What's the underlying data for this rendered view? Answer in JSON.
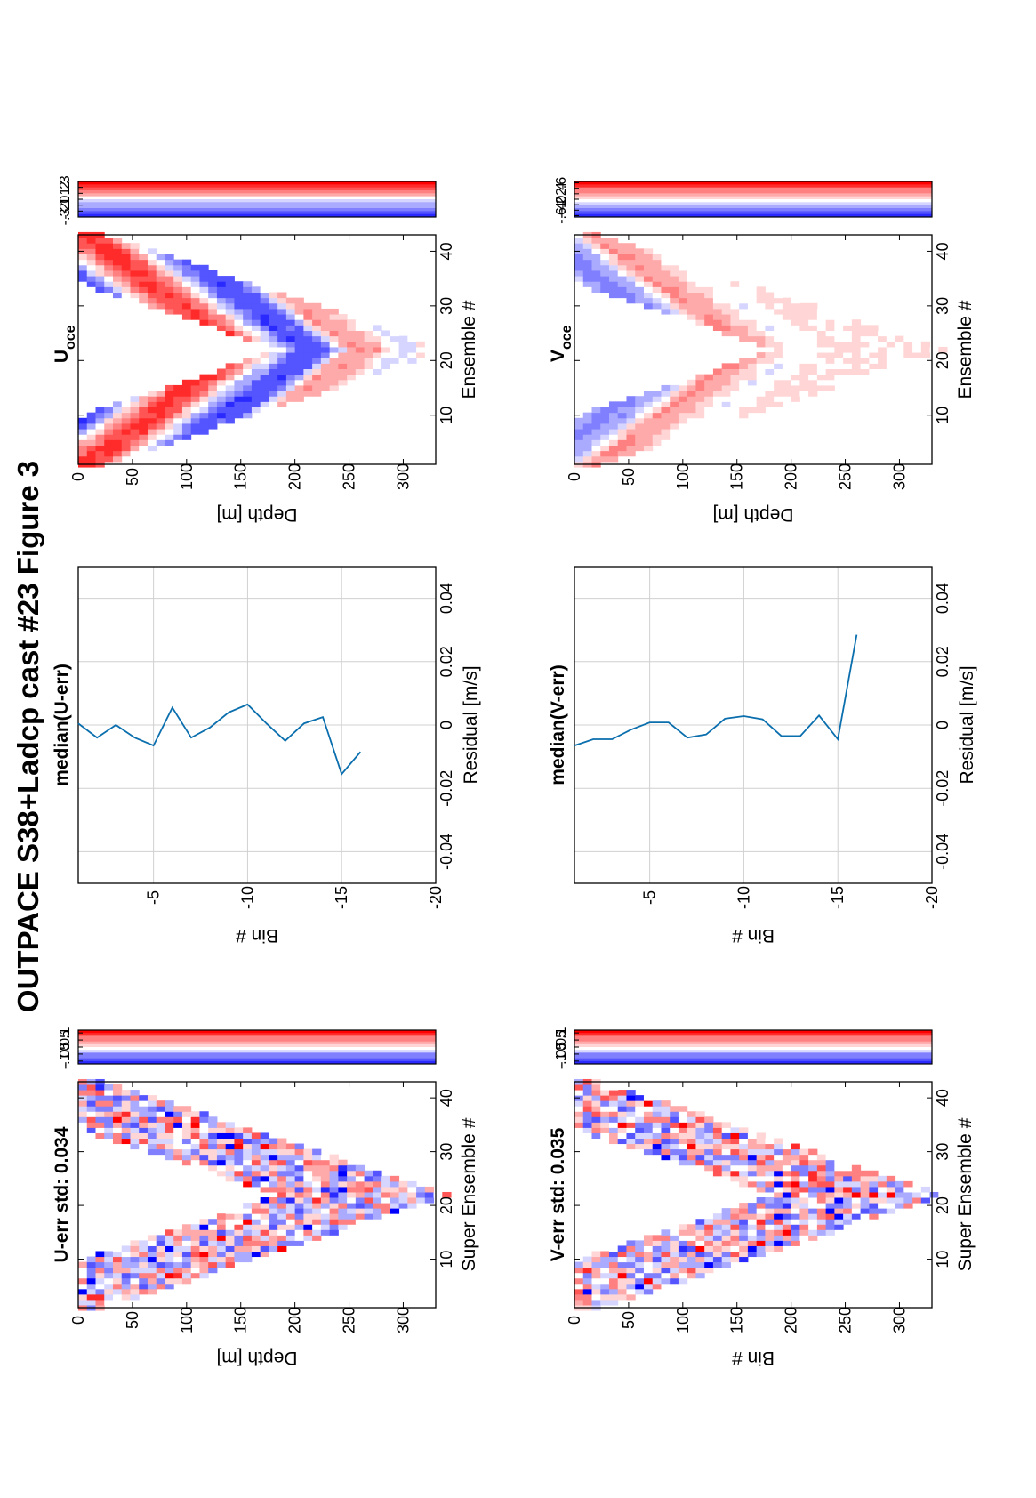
{
  "page_title": "OUTPACE S38+Ladcp cast #23  Figure 3",
  "colors": {
    "positive": "#ff0000",
    "negative": "#0000ff",
    "line": "#0b6fae",
    "grid": "#d0d0d0"
  },
  "chart_data": [
    {
      "type": "heatmap",
      "title": "U-err std: 0.034",
      "xlabel": "Super Ensemble #",
      "ylabel": "Depth [m]",
      "xlim": [
        1,
        43
      ],
      "ylim": [
        0,
        330
      ],
      "xticks": [
        10,
        20,
        30,
        40
      ],
      "yticks": [
        0,
        50,
        100,
        150,
        200,
        250,
        300
      ],
      "pattern": "noise",
      "amp": 0.11,
      "seed": 11,
      "colorbar": {
        "ticks": [
          0.1,
          0.05,
          0,
          -0.05,
          -0.1
        ],
        "range": [
          -0.12,
          0.12
        ]
      }
    },
    {
      "type": "line",
      "title": "median(U-err)",
      "xlabel": "Residual [m/s]",
      "ylabel": "Bin #",
      "xlim": [
        -0.05,
        0.05
      ],
      "ylim": [
        -20,
        -1
      ],
      "xticks": [
        -0.04,
        -0.02,
        0,
        0.02,
        0.04
      ],
      "yticks": [
        -5,
        -10,
        -15,
        -20
      ],
      "x": [
        0.0005,
        -0.004,
        0,
        -0.004,
        -0.0065,
        0.0055,
        -0.004,
        -0.0008,
        0.004,
        0.0065,
        0.0005,
        -0.005,
        0.0005,
        0.0025,
        -0.0155,
        -0.0085
      ],
      "y": [
        -1,
        -2,
        -3,
        -4,
        -5,
        -6,
        -7,
        -8,
        -9,
        -10,
        -11,
        -12,
        -13,
        -14,
        -15,
        -16
      ]
    },
    {
      "type": "heatmap",
      "title": "U",
      "title_sub": "oce",
      "xlabel": "Ensemble #",
      "ylabel": "Depth [m]",
      "xlim": [
        1,
        43
      ],
      "ylim": [
        0,
        330
      ],
      "xticks": [
        10,
        20,
        30,
        40
      ],
      "yticks": [
        0,
        50,
        100,
        150,
        200,
        250,
        300
      ],
      "pattern": "bands",
      "profile": [
        [
          10,
          0.03
        ],
        [
          35,
          -0.18
        ],
        [
          60,
          -0.25
        ],
        [
          90,
          -0.2
        ],
        [
          110,
          0.05
        ],
        [
          135,
          0.25
        ],
        [
          155,
          0.2
        ],
        [
          175,
          0.0
        ],
        [
          200,
          -0.22
        ],
        [
          225,
          -0.18
        ],
        [
          245,
          0.12
        ],
        [
          270,
          0.1
        ],
        [
          295,
          -0.05
        ],
        [
          320,
          0.02
        ]
      ],
      "amp": 0.06,
      "seed": 23,
      "colorbar": {
        "ticks": [
          0.3,
          0.2,
          0.1,
          0,
          -0.1,
          -0.2,
          -0.3
        ],
        "range": [
          -0.3,
          0.3
        ]
      }
    },
    {
      "type": "heatmap",
      "title": "V-err std: 0.035",
      "xlabel": "Super Ensemble #",
      "ylabel": "Bin #",
      "xlim": [
        1,
        43
      ],
      "ylim": [
        0,
        330
      ],
      "xticks": [
        10,
        20,
        30,
        40
      ],
      "yticks": [
        0,
        50,
        100,
        150,
        200,
        250,
        300
      ],
      "pattern": "noise",
      "amp": 0.11,
      "seed": 37,
      "colorbar": {
        "ticks": [
          0.1,
          0.05,
          0,
          -0.05,
          -0.1
        ],
        "range": [
          -0.12,
          0.12
        ]
      }
    },
    {
      "type": "line",
      "title": "median(V-err)",
      "xlabel": "Residual [m/s]",
      "ylabel": "Bin #",
      "xlim": [
        -0.05,
        0.05
      ],
      "ylim": [
        -20,
        -1
      ],
      "xticks": [
        -0.04,
        -0.02,
        0,
        0.02,
        0.04
      ],
      "yticks": [
        -5,
        -10,
        -15,
        -20
      ],
      "x": [
        -0.0065,
        -0.0045,
        -0.0045,
        -0.0015,
        0.0008,
        0.0008,
        -0.004,
        -0.003,
        0.002,
        0.0028,
        0.0018,
        -0.0035,
        -0.0035,
        0.003,
        -0.0045,
        0.0285
      ],
      "y": [
        -1,
        -2,
        -3,
        -4,
        -5,
        -6,
        -7,
        -8,
        -9,
        -10,
        -11,
        -12,
        -13,
        -14,
        -15,
        -16
      ]
    },
    {
      "type": "heatmap",
      "title": "V",
      "title_sub": "oce",
      "xlabel": "Ensemble #",
      "ylabel": "Depth [m]",
      "xlim": [
        1,
        43
      ],
      "ylim": [
        0,
        330
      ],
      "xticks": [
        10,
        20,
        30,
        40
      ],
      "yticks": [
        0,
        50,
        100,
        150,
        200,
        250,
        300
      ],
      "pattern": "bands",
      "profile": [
        [
          10,
          0.1
        ],
        [
          40,
          0.05
        ],
        [
          70,
          0.0
        ],
        [
          100,
          -0.35
        ],
        [
          125,
          -0.2
        ],
        [
          150,
          0.3
        ],
        [
          170,
          0.2
        ],
        [
          200,
          -0.05
        ],
        [
          230,
          0.08
        ],
        [
          260,
          0.06
        ],
        [
          300,
          0.05
        ],
        [
          320,
          0.04
        ]
      ],
      "amp": 0.07,
      "seed": 5,
      "colorbar": {
        "ticks": [
          0.6,
          0.4,
          0.2,
          0,
          -0.2,
          -0.4,
          -0.6
        ],
        "range": [
          -0.65,
          0.65
        ]
      }
    }
  ]
}
